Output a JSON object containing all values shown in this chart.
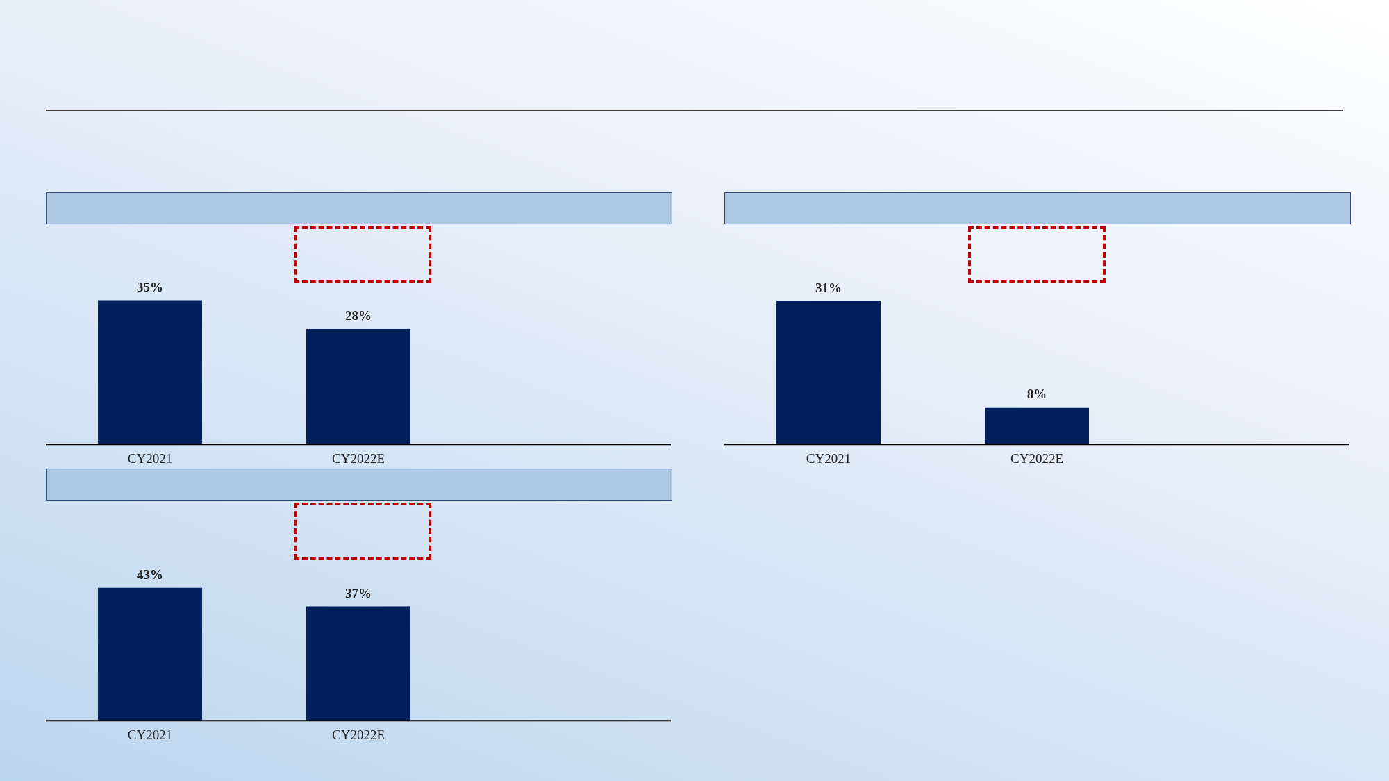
{
  "chart_data": [
    {
      "type": "bar",
      "categories": [
        "CY2021",
        "CY2022E"
      ],
      "values": [
        35,
        28
      ],
      "value_labels": [
        "35%",
        "28%"
      ],
      "color": "#001f5b",
      "grid": false,
      "tick_labels": "x",
      "legend": false
    },
    {
      "type": "bar",
      "categories": [
        "CY2021",
        "CY2022E"
      ],
      "values": [
        31,
        8
      ],
      "value_labels": [
        "31%",
        "8%"
      ],
      "color": "#001f5b",
      "grid": false,
      "tick_labels": "x",
      "legend": false
    },
    {
      "type": "bar",
      "categories": [
        "CY2021",
        "CY2022E"
      ],
      "values": [
        43,
        37
      ],
      "value_labels": [
        "43%",
        "37%"
      ],
      "color": "#001f5b",
      "grid": false,
      "tick_labels": "x",
      "legend": false
    }
  ]
}
